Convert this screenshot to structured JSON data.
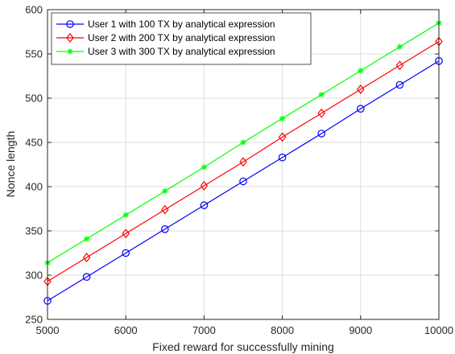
{
  "chart_data": {
    "type": "line",
    "title": "",
    "xlabel": "Fixed reward for successfully mining",
    "ylabel": "Nonce length",
    "xlim": [
      5000,
      10000
    ],
    "ylim": [
      250,
      600
    ],
    "xticks": [
      5000,
      6000,
      7000,
      8000,
      9000,
      10000
    ],
    "yticks": [
      250,
      300,
      350,
      400,
      450,
      500,
      550,
      600
    ],
    "grid": true,
    "legend_position": "top-left",
    "x": [
      5000,
      5500,
      6000,
      6500,
      7000,
      7500,
      8000,
      8500,
      9000,
      9500,
      10000
    ],
    "series": [
      {
        "name": "User 1 with 100 TX by analytical expression",
        "color": "#0000ff",
        "marker": "circle",
        "values": [
          271,
          298,
          325,
          352,
          379,
          406,
          433,
          460,
          488,
          515,
          542
        ]
      },
      {
        "name": "User 2 with 200 TX by analytical expression",
        "color": "#ff0000",
        "marker": "diamond",
        "values": [
          293,
          320,
          347,
          374,
          401,
          428,
          456,
          483,
          510,
          537,
          564
        ]
      },
      {
        "name": "User 3 with 300 TX by analytical expression",
        "color": "#00ff00",
        "marker": "asterisk",
        "values": [
          314,
          341,
          368,
          395,
          422,
          450,
          477,
          504,
          531,
          558,
          585
        ]
      }
    ]
  }
}
